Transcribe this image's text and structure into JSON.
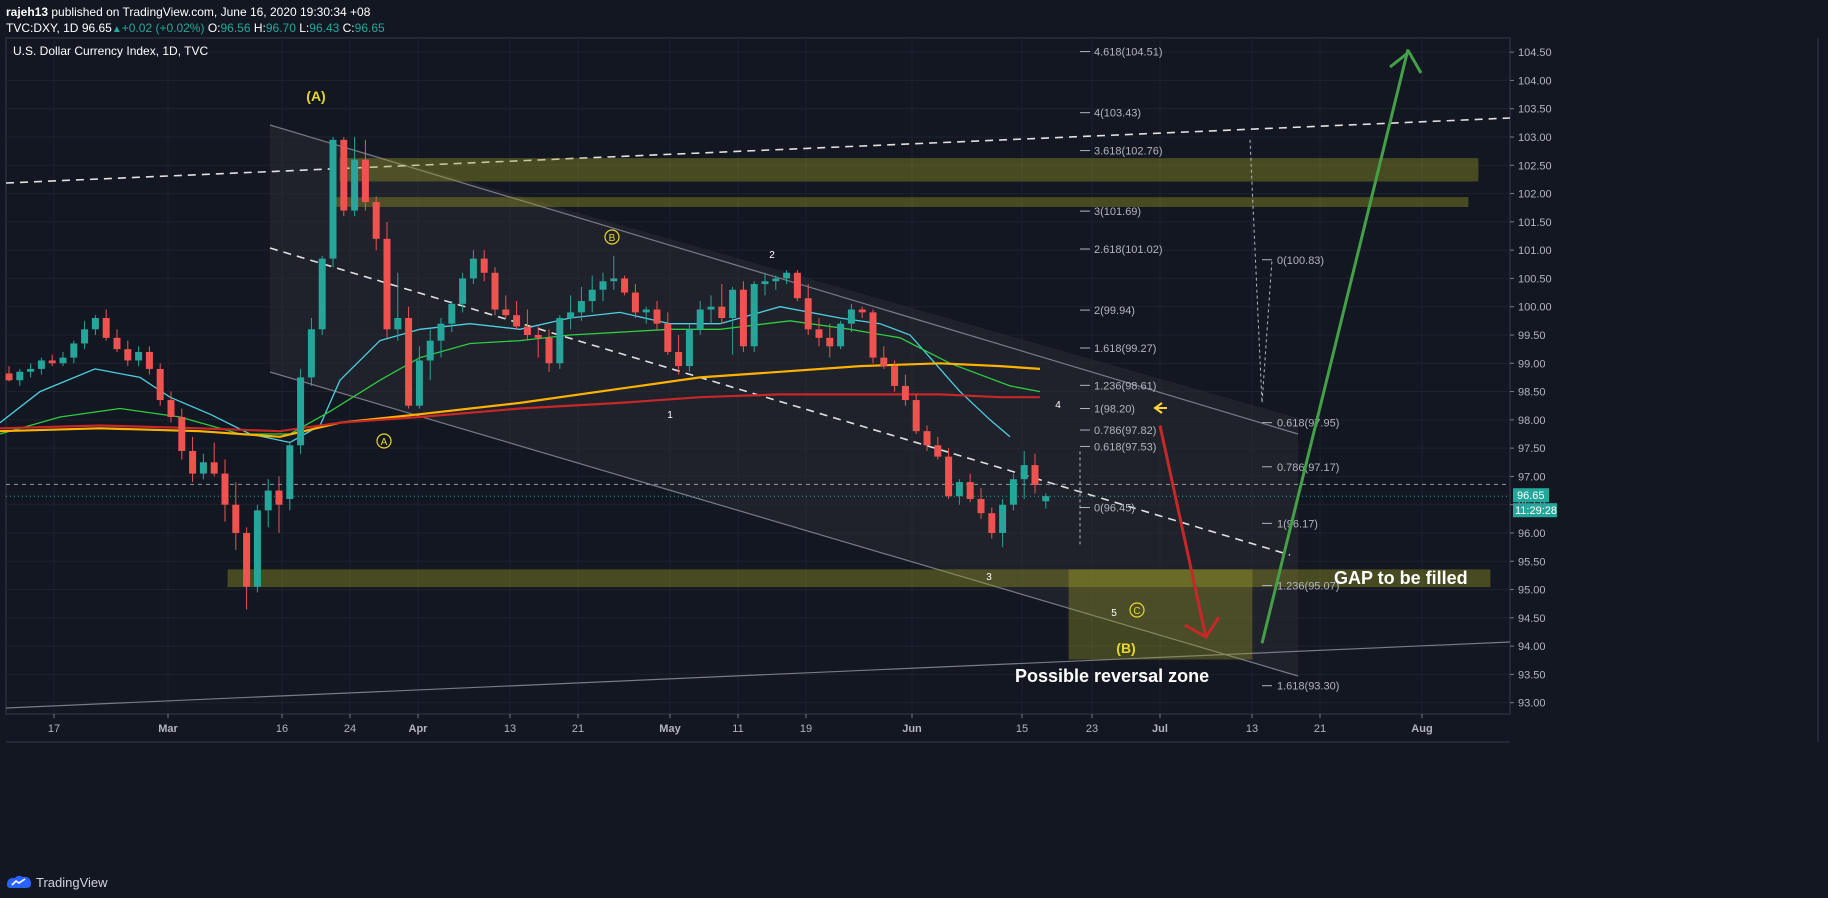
{
  "header": {
    "publisher": "rajeh13",
    "published_text": "published on TradingView.com, June 16, 2020 19:30:34 +08",
    "ticker": "TVC:DXY, 1D",
    "last": "96.65",
    "change": "+0.02 (+0.02%)",
    "open_label": "O:",
    "open": "96.56",
    "high_label": "H:",
    "high": "96.70",
    "low_label": "L:",
    "low": "96.43",
    "close_label": "C:",
    "close": "96.65"
  },
  "footer": {
    "brand": "TradingView"
  },
  "colors": {
    "background": "#131722",
    "up": "#26a69a",
    "down": "#ef5350",
    "ma_fast": "#4dd0e1",
    "ma_mid": "#2ecc40",
    "ma_orange": "#ffb300",
    "ma_red": "#c62828",
    "zone": "#9e9d24",
    "arrow_up": "#43a047",
    "arrow_down": "#c62828",
    "label_yellow": "#e6d82d"
  },
  "chart_data": {
    "type": "candlestick",
    "title": "U.S. Dollar Currency Index, 1D, TVC",
    "x_tick_labels": [
      "17",
      "Mar",
      "16",
      "24",
      "Apr",
      "13",
      "21",
      "May",
      "11",
      "19",
      "Jun",
      "15",
      "23",
      "Jul",
      "13",
      "21",
      "Aug"
    ],
    "y_tick_labels": [
      "93.00",
      "93.50",
      "94.00",
      "94.50",
      "95.00",
      "95.50",
      "96.00",
      "96.50",
      "97.00",
      "97.50",
      "98.00",
      "98.50",
      "99.00",
      "99.50",
      "100.00",
      "100.50",
      "101.00",
      "101.50",
      "102.00",
      "102.50",
      "103.00",
      "103.50",
      "104.00",
      "104.50"
    ],
    "ylim": [
      92.8,
      104.75
    ],
    "price_badge": "96.65",
    "countdown_badge": "11:29:28",
    "candles_ohlc": [
      [
        98.82,
        98.95,
        98.68,
        98.7
      ],
      [
        98.7,
        98.9,
        98.6,
        98.85
      ],
      [
        98.85,
        99.0,
        98.75,
        98.9
      ],
      [
        98.9,
        99.1,
        98.8,
        99.05
      ],
      [
        99.05,
        99.15,
        98.95,
        99.0
      ],
      [
        99.0,
        99.2,
        98.95,
        99.1
      ],
      [
        99.1,
        99.4,
        99.0,
        99.35
      ],
      [
        99.35,
        99.75,
        99.25,
        99.6
      ],
      [
        99.6,
        99.85,
        99.5,
        99.8
      ],
      [
        99.8,
        99.95,
        99.4,
        99.45
      ],
      [
        99.45,
        99.6,
        99.2,
        99.25
      ],
      [
        99.25,
        99.4,
        98.95,
        99.05
      ],
      [
        99.05,
        99.3,
        98.95,
        99.2
      ],
      [
        99.2,
        99.3,
        98.8,
        98.9
      ],
      [
        98.9,
        99.0,
        98.25,
        98.35
      ],
      [
        98.35,
        98.5,
        97.95,
        98.05
      ],
      [
        98.05,
        98.2,
        97.3,
        97.45
      ],
      [
        97.45,
        97.7,
        96.9,
        97.05
      ],
      [
        97.05,
        97.4,
        96.95,
        97.25
      ],
      [
        97.25,
        97.6,
        97.0,
        97.05
      ],
      [
        97.05,
        97.3,
        96.2,
        96.5
      ],
      [
        96.5,
        96.9,
        95.7,
        96.0
      ],
      [
        96.0,
        96.1,
        94.65,
        95.05
      ],
      [
        95.05,
        96.5,
        94.95,
        96.4
      ],
      [
        96.4,
        96.95,
        96.1,
        96.75
      ],
      [
        96.75,
        97.0,
        96.0,
        96.5
      ],
      [
        96.6,
        97.6,
        96.4,
        97.55
      ],
      [
        97.55,
        98.9,
        97.4,
        98.75
      ],
      [
        98.75,
        99.8,
        98.6,
        99.6
      ],
      [
        99.6,
        100.9,
        99.5,
        100.85
      ],
      [
        100.85,
        103.0,
        100.7,
        102.95
      ],
      [
        102.95,
        103.0,
        101.6,
        101.7
      ],
      [
        101.7,
        103.0,
        101.6,
        102.6
      ],
      [
        102.6,
        102.95,
        101.7,
        101.85
      ],
      [
        101.85,
        101.95,
        101.0,
        101.2
      ],
      [
        101.2,
        101.5,
        99.45,
        99.6
      ],
      [
        99.6,
        100.6,
        99.4,
        99.8
      ],
      [
        99.8,
        100.0,
        98.2,
        98.25
      ],
      [
        98.25,
        99.3,
        98.2,
        99.05
      ],
      [
        99.05,
        99.6,
        98.7,
        99.4
      ],
      [
        99.4,
        99.8,
        99.1,
        99.7
      ],
      [
        99.7,
        100.1,
        99.55,
        100.05
      ],
      [
        100.05,
        100.6,
        99.9,
        100.5
      ],
      [
        100.5,
        101.0,
        100.4,
        100.85
      ],
      [
        100.85,
        101.0,
        100.45,
        100.6
      ],
      [
        100.6,
        100.7,
        99.85,
        99.95
      ],
      [
        99.95,
        100.2,
        99.8,
        99.85
      ],
      [
        99.85,
        100.1,
        99.6,
        99.65
      ],
      [
        99.65,
        99.95,
        99.4,
        99.5
      ],
      [
        99.5,
        99.65,
        99.1,
        99.45
      ],
      [
        99.45,
        99.6,
        98.85,
        99.0
      ],
      [
        99.0,
        99.85,
        98.9,
        99.8
      ],
      [
        99.8,
        100.2,
        99.6,
        99.9
      ],
      [
        99.9,
        100.35,
        99.75,
        100.1
      ],
      [
        100.1,
        100.55,
        99.9,
        100.3
      ],
      [
        100.3,
        100.6,
        100.1,
        100.45
      ],
      [
        100.45,
        100.9,
        100.3,
        100.5
      ],
      [
        100.5,
        100.55,
        100.2,
        100.25
      ],
      [
        100.25,
        100.4,
        99.8,
        99.9
      ],
      [
        99.9,
        100.0,
        99.7,
        99.95
      ],
      [
        99.95,
        100.1,
        99.6,
        99.7
      ],
      [
        99.7,
        99.9,
        99.15,
        99.2
      ],
      [
        99.2,
        99.5,
        98.8,
        98.95
      ],
      [
        98.95,
        99.7,
        98.85,
        99.6
      ],
      [
        99.6,
        100.1,
        99.5,
        99.95
      ],
      [
        99.95,
        100.2,
        99.7,
        100.0
      ],
      [
        100.0,
        100.4,
        99.7,
        99.8
      ],
      [
        99.8,
        100.35,
        99.15,
        100.3
      ],
      [
        100.3,
        100.45,
        99.2,
        99.3
      ],
      [
        99.3,
        100.45,
        99.2,
        100.4
      ],
      [
        100.4,
        100.6,
        100.2,
        100.45
      ],
      [
        100.45,
        100.55,
        100.3,
        100.5
      ],
      [
        100.5,
        100.65,
        100.4,
        100.6
      ],
      [
        100.6,
        100.65,
        100.1,
        100.15
      ],
      [
        100.15,
        100.4,
        99.5,
        99.6
      ],
      [
        99.6,
        99.8,
        99.3,
        99.45
      ],
      [
        99.45,
        99.7,
        99.1,
        99.3
      ],
      [
        99.3,
        99.75,
        99.25,
        99.7
      ],
      [
        99.7,
        100.05,
        99.55,
        99.95
      ],
      [
        99.95,
        100.0,
        99.8,
        99.9
      ],
      [
        99.9,
        99.95,
        99.0,
        99.1
      ],
      [
        99.1,
        99.3,
        98.9,
        98.95
      ],
      [
        98.95,
        99.05,
        98.5,
        98.6
      ],
      [
        98.6,
        98.8,
        98.25,
        98.35
      ],
      [
        98.35,
        98.45,
        97.75,
        97.8
      ],
      [
        97.8,
        97.9,
        97.45,
        97.55
      ],
      [
        97.55,
        97.7,
        97.3,
        97.35
      ],
      [
        97.35,
        97.5,
        96.6,
        96.65
      ],
      [
        96.65,
        96.95,
        96.5,
        96.9
      ],
      [
        96.9,
        97.05,
        96.55,
        96.6
      ],
      [
        96.6,
        96.8,
        96.25,
        96.35
      ],
      [
        96.35,
        96.45,
        95.9,
        96.0
      ],
      [
        96.0,
        96.6,
        95.75,
        96.5
      ],
      [
        96.5,
        97.05,
        96.4,
        96.95
      ],
      [
        96.95,
        97.45,
        96.6,
        97.2
      ],
      [
        97.2,
        97.4,
        96.7,
        96.85
      ],
      [
        96.56,
        96.7,
        96.43,
        96.65
      ]
    ],
    "moving_averages": [
      {
        "color": "#4dd0e1",
        "values": [
          [
            0,
            97.95
          ],
          [
            40,
            98.5
          ],
          [
            95,
            98.9
          ],
          [
            140,
            98.75
          ],
          [
            170,
            98.4
          ],
          [
            210,
            98.1
          ],
          [
            250,
            97.75
          ],
          [
            290,
            97.6
          ],
          [
            320,
            97.9
          ],
          [
            340,
            98.7
          ],
          [
            380,
            99.4
          ],
          [
            420,
            99.6
          ],
          [
            470,
            99.7
          ],
          [
            520,
            99.6
          ],
          [
            570,
            99.8
          ],
          [
            620,
            99.9
          ],
          [
            670,
            99.7
          ],
          [
            720,
            99.7
          ],
          [
            780,
            100.0
          ],
          [
            840,
            99.8
          ],
          [
            880,
            99.7
          ],
          [
            910,
            99.5
          ],
          [
            930,
            99.1
          ],
          [
            960,
            98.5
          ],
          [
            990,
            98.0
          ],
          [
            1010,
            97.7
          ]
        ]
      },
      {
        "color": "#2ecc40",
        "values": [
          [
            0,
            97.75
          ],
          [
            60,
            98.05
          ],
          [
            120,
            98.2
          ],
          [
            180,
            98.05
          ],
          [
            240,
            97.75
          ],
          [
            290,
            97.75
          ],
          [
            330,
            98.15
          ],
          [
            380,
            98.7
          ],
          [
            420,
            99.1
          ],
          [
            470,
            99.35
          ],
          [
            520,
            99.4
          ],
          [
            570,
            99.5
          ],
          [
            620,
            99.55
          ],
          [
            670,
            99.6
          ],
          [
            720,
            99.6
          ],
          [
            790,
            99.75
          ],
          [
            850,
            99.6
          ],
          [
            900,
            99.45
          ],
          [
            950,
            99.0
          ],
          [
            1010,
            98.6
          ],
          [
            1040,
            98.5
          ]
        ]
      },
      {
        "color": "#ffb300",
        "values": [
          [
            0,
            97.8
          ],
          [
            100,
            97.85
          ],
          [
            200,
            97.8
          ],
          [
            280,
            97.7
          ],
          [
            340,
            97.95
          ],
          [
            420,
            98.1
          ],
          [
            520,
            98.3
          ],
          [
            620,
            98.55
          ],
          [
            700,
            98.75
          ],
          [
            780,
            98.85
          ],
          [
            860,
            98.95
          ],
          [
            940,
            99.0
          ],
          [
            1000,
            98.95
          ],
          [
            1040,
            98.9
          ]
        ]
      },
      {
        "color": "#c62828",
        "values": [
          [
            0,
            97.85
          ],
          [
            100,
            97.9
          ],
          [
            200,
            97.85
          ],
          [
            280,
            97.8
          ],
          [
            340,
            97.95
          ],
          [
            420,
            98.05
          ],
          [
            520,
            98.2
          ],
          [
            620,
            98.3
          ],
          [
            700,
            98.4
          ],
          [
            780,
            98.45
          ],
          [
            860,
            98.45
          ],
          [
            940,
            98.45
          ],
          [
            1000,
            98.4
          ],
          [
            1040,
            98.4
          ]
        ]
      }
    ],
    "fib_left": [
      "4.618(104.51)",
      "4(103.43)",
      "3.618(102.76)",
      "3(101.69)",
      "2.618(101.02)",
      "2(99.94)",
      "1.618(99.27)",
      "1.236(98.61)",
      "1(98.20)",
      "0.786(97.82)",
      "0.618(97.53)",
      "0(96.45)"
    ],
    "fib_right": [
      "0(100.83)",
      "0.618(97.95)",
      "0.786(97.17)",
      "1(96.17)",
      "1.236(95.07)",
      "1.618(93.30)"
    ],
    "wave_labels": [
      {
        "text": "(A)",
        "style": "big"
      },
      {
        "text": "B",
        "style": "circle"
      },
      {
        "text": "A",
        "style": "circle"
      },
      {
        "text": "C",
        "style": "circle"
      },
      {
        "text": "(B)",
        "style": "big"
      },
      {
        "text": "1",
        "style": "small"
      },
      {
        "text": "2",
        "style": "small"
      },
      {
        "text": "3",
        "style": "small"
      },
      {
        "text": "4",
        "style": "small"
      },
      {
        "text": "5",
        "style": "small"
      }
    ],
    "annotations": [
      "GAP to be filled",
      "Possible reversal zone"
    ]
  }
}
